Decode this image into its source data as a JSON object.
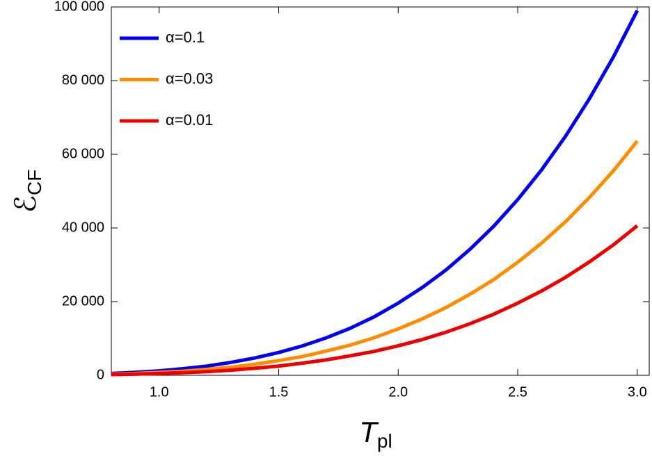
{
  "chart_data": {
    "type": "line",
    "x_label": {
      "symbol": "T",
      "subscript": "pl"
    },
    "y_label": {
      "symbol": "ℰ",
      "subscript": "CF"
    },
    "x": [
      0.8,
      0.9,
      1.0,
      1.1,
      1.2,
      1.3,
      1.4,
      1.5,
      1.6,
      1.7,
      1.8,
      1.9,
      2.0,
      2.1,
      2.2,
      2.3,
      2.4,
      2.5,
      2.6,
      2.7,
      2.8,
      2.9,
      3.0
    ],
    "series": [
      {
        "name": "α=0.1",
        "color": "#0000ee",
        "values": [
          500,
          800,
          1200,
          1800,
          2500,
          3500,
          4700,
          6200,
          8000,
          10200,
          12800,
          15900,
          19600,
          23800,
          28600,
          34200,
          40500,
          47700,
          55800,
          64900,
          75100,
          86400,
          99000
        ]
      },
      {
        "name": "α=0.03",
        "color": "#ff8c00",
        "values": [
          300,
          500,
          800,
          1100,
          1600,
          2200,
          3000,
          4000,
          5100,
          6600,
          8200,
          10200,
          12600,
          15300,
          18400,
          22000,
          26000,
          30700,
          35900,
          41700,
          48300,
          55500,
          63600
        ]
      },
      {
        "name": "α=0.01",
        "color": "#ee0000",
        "values": [
          200,
          300,
          500,
          700,
          1000,
          1400,
          1900,
          2500,
          3300,
          4200,
          5300,
          6500,
          8000,
          9700,
          11700,
          14000,
          16600,
          19600,
          22900,
          26600,
          30800,
          35400,
          40600
        ]
      }
    ],
    "xlim": [
      0.8,
      3.05
    ],
    "ylim": [
      0,
      100000
    ],
    "xticks": [
      {
        "value": 1.0,
        "label": "1.0"
      },
      1.5,
      {
        "value": 2.0,
        "label": "2.0"
      },
      2.5,
      {
        "value": 3.0,
        "label": "3.0"
      }
    ],
    "yticks": [
      0,
      {
        "value": 20000,
        "label": "20 000"
      },
      {
        "value": 40000,
        "label": "40 000"
      },
      {
        "value": 60000,
        "label": "60 000"
      },
      {
        "value": 80000,
        "label": "80 000"
      },
      {
        "value": 100000,
        "label": "100 000"
      }
    ],
    "legend": "upper-left"
  }
}
